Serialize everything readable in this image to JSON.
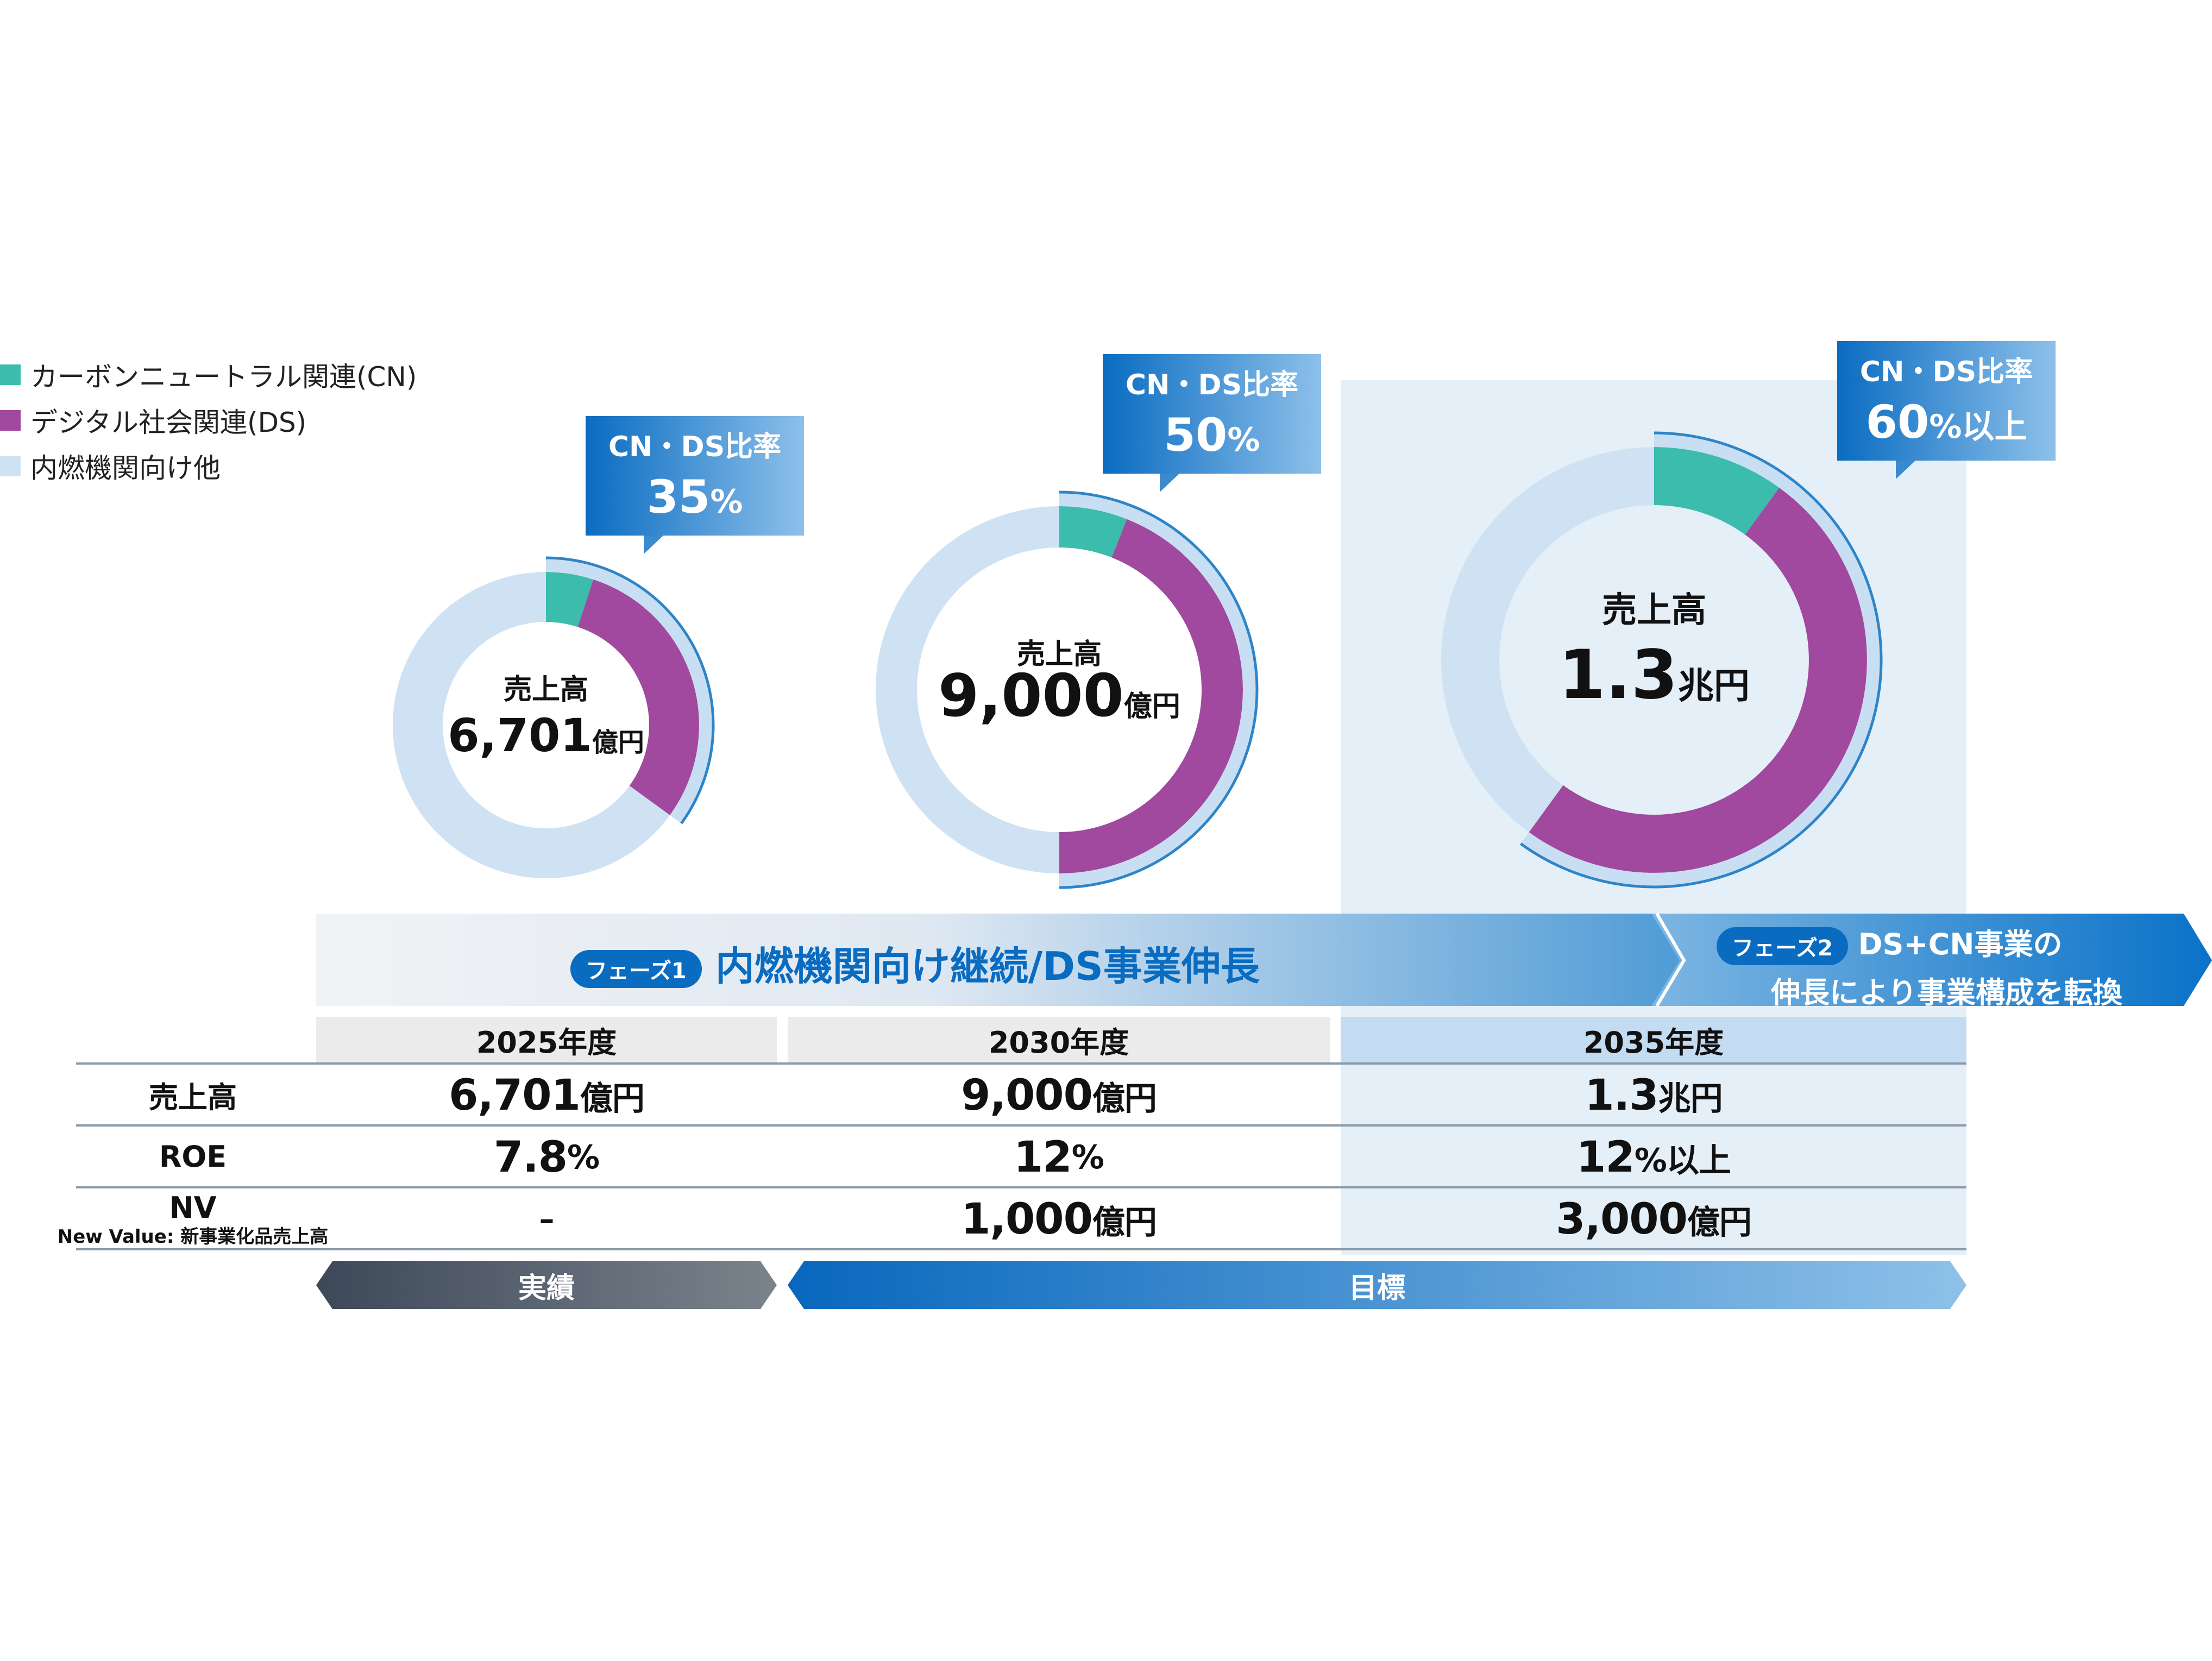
{
  "legend": [
    {
      "label": "カーボンニュートラル関連(CN)",
      "color": "#3bbcac"
    },
    {
      "label": "デジタル社会関連(DS)",
      "color": "#a1489f"
    },
    {
      "label": "内燃機関向け他",
      "color": "#cfe2f3"
    }
  ],
  "chart_data": {
    "type": "pie",
    "series_names": [
      "カーボンニュートラル関連(CN)",
      "デジタル社会関連(DS)",
      "内燃機関向け他"
    ],
    "charts": [
      {
        "center_label": "売上高",
        "total_value": "6,701",
        "total_unit": "億円",
        "ratio_title": "CN・DS比率",
        "ratio_value": "35",
        "ratio_unit": "%",
        "ratio_suffix": "",
        "shares": [
          0.05,
          0.3,
          0.65
        ]
      },
      {
        "center_label": "売上高",
        "total_value": "9,000",
        "total_unit": "億円",
        "ratio_title": "CN・DS比率",
        "ratio_value": "50",
        "ratio_unit": "%",
        "ratio_suffix": "",
        "shares": [
          0.06,
          0.44,
          0.5
        ]
      },
      {
        "center_label": "売上高",
        "total_value": "1.3",
        "total_unit": "兆円",
        "ratio_title": "CN・DS比率",
        "ratio_value": "60",
        "ratio_unit": "%",
        "ratio_suffix": "以上",
        "shares": [
          0.1,
          0.5,
          0.4
        ]
      }
    ]
  },
  "phases": {
    "phase1_tag": "フェーズ1",
    "phase1_text": "内燃機関向け継続/DS事業伸長",
    "phase2_tag": "フェーズ2",
    "phase2_line1": "DS+CN事業の",
    "phase2_line2": "伸長により事業構成を転換"
  },
  "table": {
    "years": [
      "2025年度",
      "2030年度",
      "2035年度"
    ],
    "rows": [
      {
        "label": "売上高",
        "sub": "",
        "values": [
          [
            "6,701",
            "億円"
          ],
          [
            "9,000",
            "億円"
          ],
          [
            "1.3",
            "兆円"
          ]
        ]
      },
      {
        "label": "ROE",
        "sub": "",
        "values": [
          [
            "7.8",
            "%"
          ],
          [
            "12",
            "%"
          ],
          [
            "12",
            "%以上"
          ]
        ]
      },
      {
        "label": "NV",
        "sub": "New Value: 新事業化品売上高",
        "values": [
          [
            "–",
            ""
          ],
          [
            "1,000",
            "億円"
          ],
          [
            "3,000",
            "億円"
          ]
        ]
      }
    ],
    "footer": {
      "actual": "実績",
      "target": "目標"
    }
  }
}
